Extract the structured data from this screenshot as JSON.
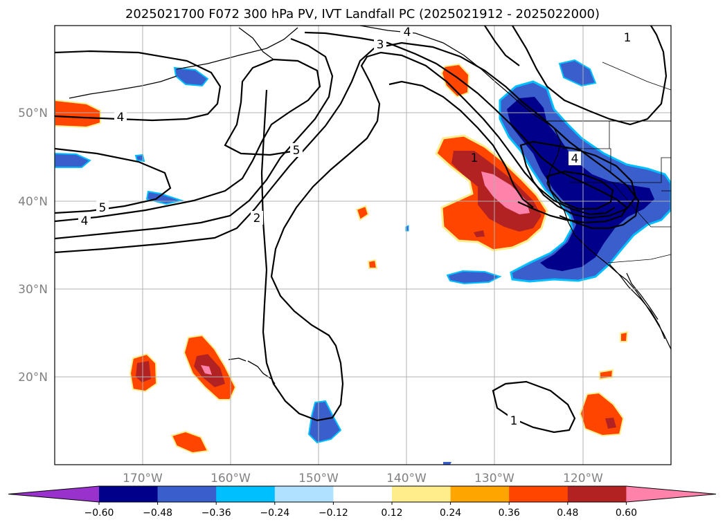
{
  "title": "2025021700 F072 300 hPa PV, IVT Landfall PC (2025021912 - 2025022000)",
  "lat_labels": [
    "50°N",
    "40°N",
    "30°N",
    "20°N"
  ],
  "lon_labels": [
    "170°W",
    "160°W",
    "150°W",
    "140°W",
    "130°W",
    "120°W"
  ],
  "pv_contour_labels": [
    "4",
    "5",
    "4",
    "5",
    "4",
    "3",
    "2",
    "1",
    "4",
    "1",
    "1"
  ],
  "colorbar": {
    "ticks": [
      "−0.60",
      "−0.48",
      "−0.36",
      "−0.24",
      "−0.12",
      "0.12",
      "0.24",
      "0.36",
      "0.48",
      "0.60"
    ],
    "colors": [
      "#9932cc",
      "#00008b",
      "#3a5fcd",
      "#00bfff",
      "#b0e2ff",
      "#ffffff",
      "#ffec8b",
      "#ffa500",
      "#ff4500",
      "#b22222",
      "#ff82ab"
    ]
  }
}
